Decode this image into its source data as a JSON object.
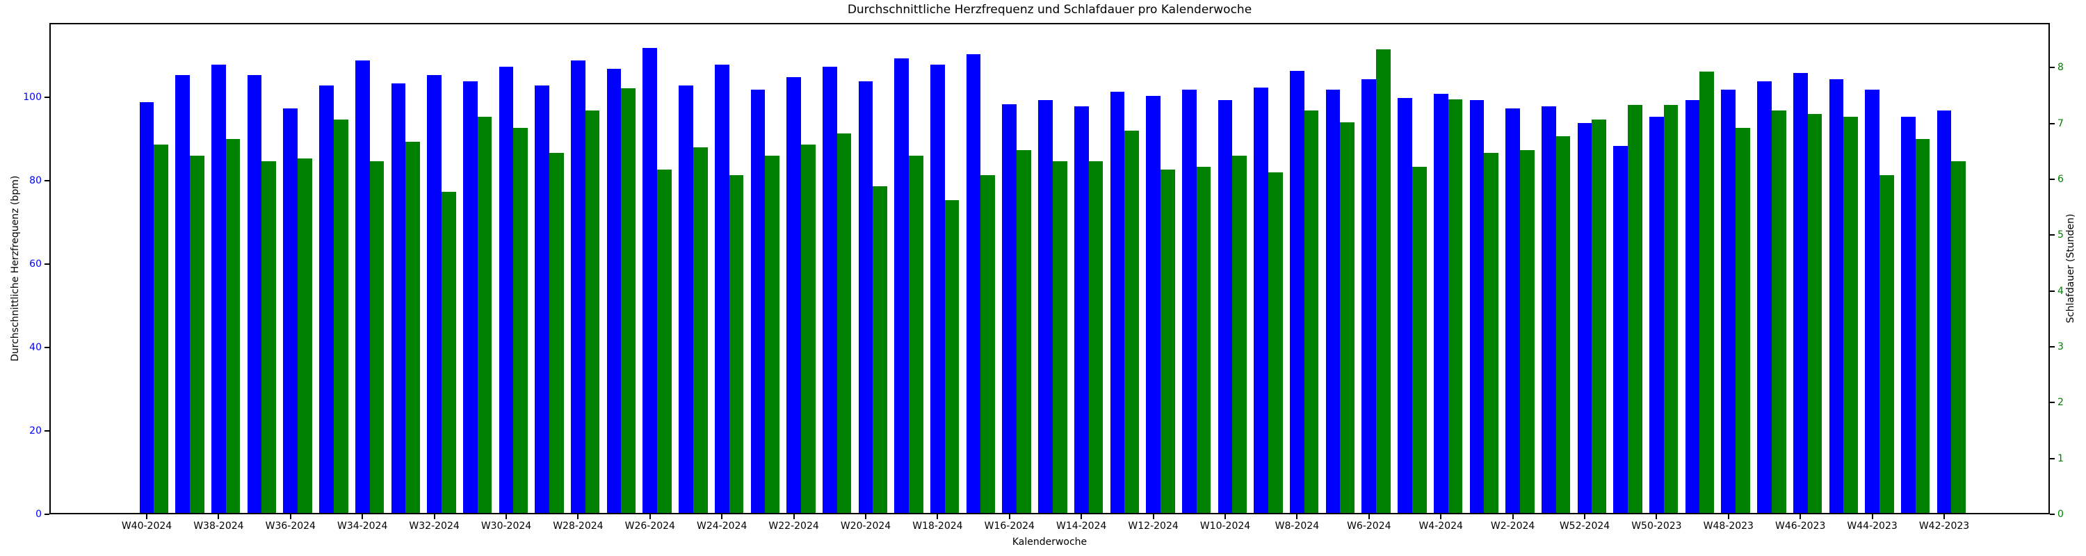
{
  "title": "Durchschnittliche Herzfrequenz und Schlafdauer pro Kalenderwoche",
  "x_axis": {
    "label": "Kalenderwoche",
    "tick_labels": [
      "W40-2024",
      "W38-2024",
      "W36-2024",
      "W34-2024",
      "W32-2024",
      "W30-2024",
      "W28-2024",
      "W26-2024",
      "W24-2024",
      "W22-2024",
      "W20-2024",
      "W18-2024",
      "W16-2024",
      "W14-2024",
      "W12-2024",
      "W10-2024",
      "W8-2024",
      "W6-2024",
      "W4-2024",
      "W2-2024",
      "W52-2024",
      "W50-2023",
      "W48-2023",
      "W46-2023",
      "W44-2023",
      "W42-2023"
    ],
    "tick_every": 2
  },
  "y_axis_left": {
    "label": "Durchschnittliche Herzfrequenz (bpm)",
    "color": "#0000ff",
    "ticks": [
      0,
      20,
      40,
      60,
      80,
      100
    ]
  },
  "y_axis_right": {
    "label": "Schlafdauer (Stunden)",
    "color": "#008000",
    "ticks": [
      0,
      1,
      2,
      3,
      4,
      5,
      6,
      7,
      8
    ]
  },
  "chart_data": {
    "type": "bar",
    "title": "Durchschnittliche Herzfrequenz und Schlafdauer pro Kalenderwoche",
    "xlabel": "Kalenderwoche",
    "ylabel_left": "Durchschnittliche Herzfrequenz (bpm)",
    "ylabel_right": "Schlafdauer (Stunden)",
    "n_groups": 51,
    "x_tick_labels_every_2nd_group": [
      "W40-2024",
      "W38-2024",
      "W36-2024",
      "W34-2024",
      "W32-2024",
      "W30-2024",
      "W28-2024",
      "W26-2024",
      "W24-2024",
      "W22-2024",
      "W20-2024",
      "W18-2024",
      "W16-2024",
      "W14-2024",
      "W12-2024",
      "W10-2024",
      "W8-2024",
      "W6-2024",
      "W4-2024",
      "W2-2024",
      "W52-2024",
      "W50-2023",
      "W48-2023",
      "W46-2023",
      "W44-2023",
      "W42-2023"
    ],
    "ylim_left": [
      0,
      117.8
    ],
    "ylim_right": [
      0,
      8.8
    ],
    "grid": false,
    "legend": "none",
    "series": [
      {
        "name": "Durchschnittliche Herzfrequenz (bpm)",
        "axis": "left",
        "color": "#0000ff",
        "values": [
          98.5,
          105,
          107.5,
          105,
          97,
          102.5,
          108.5,
          103,
          105,
          103.5,
          107,
          102.5,
          108.5,
          106.5,
          111.5,
          102.5,
          107.5,
          101.5,
          104.5,
          107,
          103.5,
          109,
          107.5,
          110,
          98,
          99,
          97.5,
          101,
          100,
          101.5,
          99,
          102,
          106,
          101.5,
          104,
          99.5,
          100.5,
          99,
          97,
          97.5,
          93.5,
          88,
          95,
          99,
          101.5,
          103.5,
          105.5,
          104,
          101.5,
          95,
          96.5
        ]
      },
      {
        "name": "Schlafdauer (Stunden)",
        "axis": "right",
        "color": "#008000",
        "values": [
          6.6,
          6.4,
          6.7,
          6.3,
          6.35,
          7.05,
          6.3,
          6.65,
          5.75,
          7.1,
          6.9,
          6.45,
          7.2,
          7.6,
          6.15,
          6.55,
          6.05,
          6.4,
          6.6,
          6.8,
          5.85,
          6.4,
          5.6,
          6.05,
          6.5,
          6.3,
          6.3,
          6.85,
          6.15,
          6.2,
          6.4,
          6.1,
          7.2,
          7.0,
          8.3,
          6.2,
          7.4,
          6.45,
          6.5,
          6.75,
          7.05,
          7.3,
          7.3,
          7.9,
          6.9,
          7.2,
          7.15,
          7.1,
          6.05,
          6.7,
          6.3
        ]
      }
    ]
  }
}
